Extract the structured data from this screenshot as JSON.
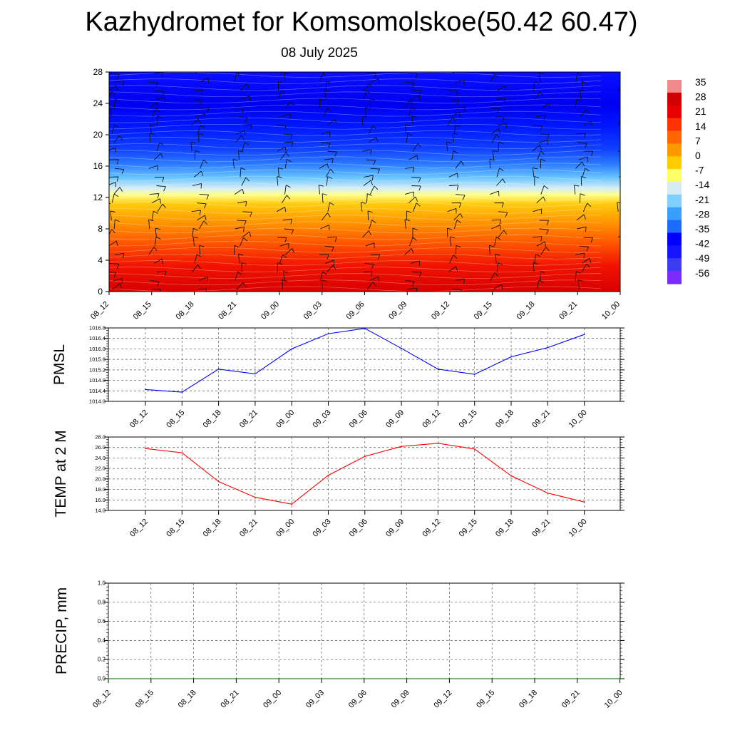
{
  "header": {
    "title": "Kazhydromet for Komsomolskoe(50.42 60.47)",
    "date": "08 July 2025"
  },
  "colors": {
    "pmsl_line": "#0000ff",
    "temp_line": "#ff0000",
    "precip_line": "#006400",
    "palette": [
      "#7b2bff",
      "#3c3cf0",
      "#1414ff",
      "#0000ff",
      "#1e6bff",
      "#3aa0ff",
      "#7fd0ff",
      "#d6ecf5",
      "#ffff66",
      "#ffcc00",
      "#ff9900",
      "#ff6600",
      "#ff3300",
      "#e80000",
      "#d10000",
      "#f08a8a"
    ]
  },
  "chart_data": [
    {
      "type": "heatmap",
      "description_kind": "vertical cross-section with wind barbs",
      "x_tick_labels": [
        "08_12",
        "08_15",
        "08_18",
        "08_21",
        "09_00",
        "09_03",
        "09_06",
        "09_09",
        "09_12",
        "09_15",
        "09_18",
        "09_21",
        "10_00"
      ],
      "y_tick_labels": [
        "0",
        "4",
        "8",
        "12",
        "16",
        "20",
        "24",
        "28"
      ],
      "ylim": [
        0,
        28
      ],
      "colorbar_labels": [
        "35",
        "28",
        "21",
        "14",
        "7",
        "0",
        "-7",
        "-14",
        "-21",
        "-28",
        "-35",
        "-42",
        "-49",
        "-56"
      ],
      "approx_profile": [
        {
          "level": 0,
          "value": 28
        },
        {
          "level": 4,
          "value": 21
        },
        {
          "level": 8,
          "value": 7
        },
        {
          "level": 12,
          "value": -7
        },
        {
          "level": 14,
          "value": -21
        },
        {
          "level": 16,
          "value": -35
        },
        {
          "level": 20,
          "value": -56
        },
        {
          "level": 24,
          "value": -49
        },
        {
          "level": 28,
          "value": -42
        }
      ]
    },
    {
      "type": "line",
      "ylabel": "PMSL",
      "ylim": [
        1014.0,
        1016.8
      ],
      "y_tick_labels": [
        "1016.8",
        "1016.4",
        "1016.0",
        "1015.6",
        "1015.2",
        "1014.8",
        "1014.4",
        "1014.0"
      ],
      "x_tick_labels": [
        "08_12",
        "08_15",
        "08_18",
        "08_21",
        "09_00",
        "09_03",
        "09_06",
        "09_09",
        "09_12",
        "09_15",
        "09_18",
        "09_21",
        "10_00"
      ],
      "values": [
        1014.45,
        1014.35,
        1015.23,
        1015.05,
        1016.0,
        1016.58,
        1016.78,
        1016.02,
        1015.23,
        1015.03,
        1015.7,
        1016.05,
        1016.55
      ]
    },
    {
      "type": "line",
      "ylabel": "TEMP at 2 M",
      "ylim": [
        14.0,
        28.0
      ],
      "y_tick_labels": [
        "28.0",
        "26.0",
        "24.0",
        "22.0",
        "20.0",
        "18.0",
        "16.0",
        "14.0"
      ],
      "x_tick_labels": [
        "08_12",
        "08_15",
        "08_18",
        "08_21",
        "09_00",
        "09_03",
        "09_06",
        "09_09",
        "09_12",
        "09_15",
        "09_18",
        "09_21",
        "10_00"
      ],
      "values": [
        25.8,
        25.0,
        19.5,
        16.5,
        15.2,
        20.7,
        24.3,
        26.2,
        26.8,
        25.7,
        20.6,
        17.3,
        15.6
      ]
    },
    {
      "type": "line",
      "ylabel": "PRECIP, mm",
      "ylim": [
        0.0,
        1.0
      ],
      "y_tick_labels": [
        "1.0",
        "0.8",
        "0.6",
        "0.4",
        "0.2",
        "0.0"
      ],
      "x_tick_labels": [
        "08_12",
        "08_15",
        "08_18",
        "08_21",
        "09_00",
        "09_03",
        "09_06",
        "09_09",
        "09_12",
        "09_15",
        "09_18",
        "09_21",
        "10_00"
      ],
      "values": [
        0,
        0,
        0,
        0,
        0,
        0,
        0,
        0,
        0,
        0,
        0,
        0,
        0
      ]
    }
  ]
}
